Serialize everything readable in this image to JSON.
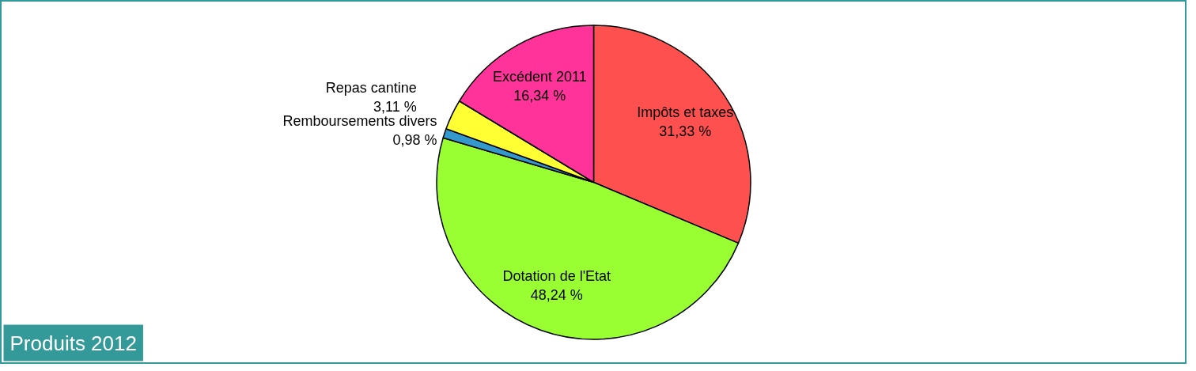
{
  "chart_data": {
    "type": "pie",
    "title": "Produits 2012",
    "categories": [
      "Impôts et taxes",
      "Dotation de l'Etat",
      "Remboursements divers",
      "Repas cantine",
      "Excédent 2011"
    ],
    "values": [
      31.33,
      48.24,
      0.98,
      3.11,
      16.34
    ],
    "value_labels": [
      "31,33 %",
      "48,24 %",
      "0,98 %",
      "3,11 %",
      "16,34 %"
    ],
    "colors": [
      "#ff5050",
      "#99ff33",
      "#3399cc",
      "#ffff33",
      "#ff3399"
    ]
  }
}
